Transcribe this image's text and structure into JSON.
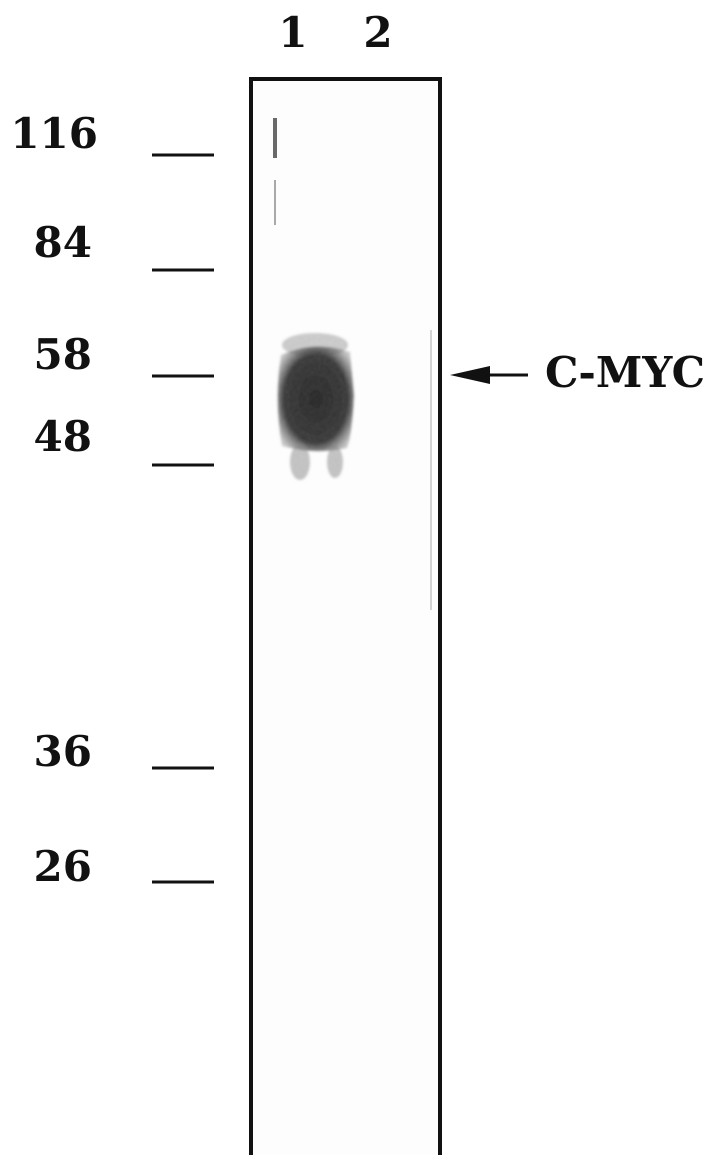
{
  "lanes": [
    "1",
    "2"
  ],
  "markers": [
    "116",
    "84",
    "58",
    "48",
    "36",
    "26"
  ],
  "annotation": "C-MYC"
}
